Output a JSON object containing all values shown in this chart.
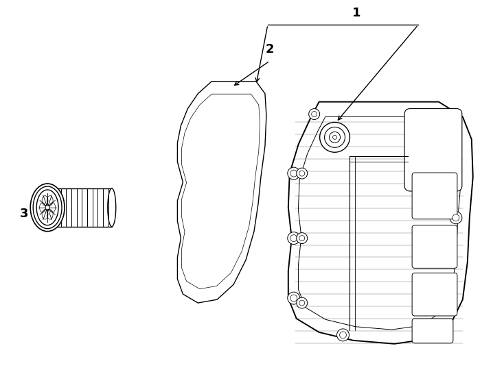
{
  "bg_color": "#ffffff",
  "line_color": "#000000",
  "lw": 1.0,
  "fig_w": 7.34,
  "fig_h": 5.4,
  "dpi": 100
}
